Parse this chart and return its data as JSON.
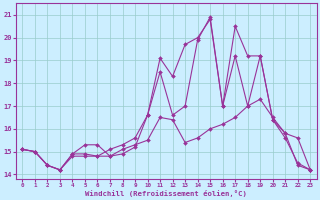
{
  "xlabel": "Windchill (Refroidissement éolien,°C)",
  "bg_color": "#cceeff",
  "line_color": "#993399",
  "grid_color": "#99cccc",
  "xlim": [
    -0.5,
    23.5
  ],
  "ylim": [
    13.8,
    21.5
  ],
  "xticks": [
    0,
    1,
    2,
    3,
    4,
    5,
    6,
    7,
    8,
    9,
    10,
    11,
    12,
    13,
    14,
    15,
    16,
    17,
    18,
    19,
    20,
    21,
    22,
    23
  ],
  "yticks": [
    14,
    15,
    16,
    17,
    18,
    19,
    20,
    21
  ],
  "line1_x": [
    0,
    1,
    2,
    3,
    4,
    5,
    6,
    7,
    8,
    9,
    10,
    11,
    12,
    13,
    14,
    15,
    16,
    17,
    18,
    19,
    20,
    21,
    22,
    23
  ],
  "line1_y": [
    15.1,
    15.0,
    14.4,
    14.2,
    14.9,
    14.9,
    14.8,
    14.8,
    15.1,
    15.3,
    15.5,
    16.5,
    16.4,
    15.4,
    15.6,
    16.0,
    16.2,
    16.5,
    17.0,
    17.3,
    16.5,
    15.8,
    15.6,
    14.2
  ],
  "line2_x": [
    0,
    1,
    2,
    3,
    4,
    5,
    6,
    7,
    8,
    9,
    10,
    11,
    12,
    13,
    14,
    15,
    16,
    17,
    18,
    19,
    20,
    21,
    22,
    23
  ],
  "line2_y": [
    15.1,
    15.0,
    14.4,
    14.2,
    14.9,
    15.3,
    15.3,
    14.8,
    14.9,
    15.2,
    16.6,
    18.5,
    16.6,
    17.0,
    19.9,
    20.9,
    17.0,
    20.5,
    19.2,
    19.2,
    16.4,
    15.8,
    14.4,
    14.2
  ],
  "line3_x": [
    0,
    1,
    2,
    3,
    4,
    5,
    6,
    7,
    8,
    9,
    10,
    11,
    12,
    13,
    14,
    15,
    16,
    17,
    18,
    19,
    20,
    21,
    22,
    23
  ],
  "line3_y": [
    15.1,
    15.0,
    14.4,
    14.2,
    14.8,
    14.8,
    14.8,
    15.1,
    15.3,
    15.6,
    16.6,
    19.1,
    18.3,
    19.7,
    20.0,
    20.8,
    17.0,
    19.2,
    17.0,
    19.2,
    16.4,
    15.6,
    14.5,
    14.2
  ]
}
